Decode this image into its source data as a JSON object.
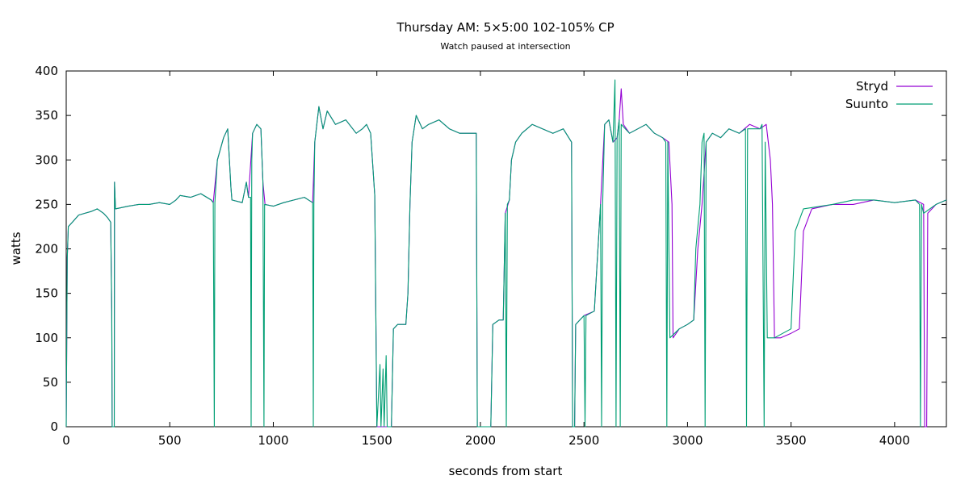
{
  "chart_data": {
    "type": "line",
    "title": "Thursday AM: 5×5:00 102-105% CP",
    "subtitle": "Watch paused at intersection",
    "xlabel": "seconds from start",
    "ylabel": "watts",
    "xlim": [
      0,
      4250
    ],
    "ylim": [
      0,
      400
    ],
    "xticks": [
      0,
      500,
      1000,
      1500,
      2000,
      2500,
      3000,
      3500,
      4000
    ],
    "yticks": [
      0,
      50,
      100,
      150,
      200,
      250,
      300,
      350,
      400
    ],
    "grid": false,
    "legend_position": "top-right",
    "series": [
      {
        "name": "Stryd",
        "color": "#9400d3",
        "points": [
          [
            0,
            0
          ],
          [
            5,
            190
          ],
          [
            10,
            225
          ],
          [
            30,
            230
          ],
          [
            60,
            238
          ],
          [
            90,
            240
          ],
          [
            120,
            242
          ],
          [
            150,
            245
          ],
          [
            180,
            240
          ],
          [
            200,
            235
          ],
          [
            215,
            230
          ],
          [
            220,
            130
          ],
          [
            222,
            0
          ],
          [
            232,
            0
          ],
          [
            233,
            275
          ],
          [
            238,
            245
          ],
          [
            300,
            248
          ],
          [
            350,
            250
          ],
          [
            400,
            250
          ],
          [
            450,
            252
          ],
          [
            500,
            250
          ],
          [
            530,
            255
          ],
          [
            550,
            260
          ],
          [
            600,
            258
          ],
          [
            650,
            262
          ],
          [
            700,
            255
          ],
          [
            710,
            252
          ],
          [
            730,
            300
          ],
          [
            760,
            325
          ],
          [
            780,
            335
          ],
          [
            795,
            270
          ],
          [
            800,
            255
          ],
          [
            850,
            252
          ],
          [
            870,
            275
          ],
          [
            880,
            258
          ],
          [
            900,
            330
          ],
          [
            920,
            340
          ],
          [
            940,
            335
          ],
          [
            950,
            275
          ],
          [
            960,
            250
          ],
          [
            1000,
            248
          ],
          [
            1050,
            252
          ],
          [
            1100,
            255
          ],
          [
            1150,
            258
          ],
          [
            1190,
            252
          ],
          [
            1200,
            320
          ],
          [
            1220,
            360
          ],
          [
            1240,
            335
          ],
          [
            1260,
            355
          ],
          [
            1300,
            340
          ],
          [
            1350,
            345
          ],
          [
            1400,
            330
          ],
          [
            1430,
            335
          ],
          [
            1450,
            340
          ],
          [
            1470,
            330
          ],
          [
            1490,
            260
          ],
          [
            1500,
            0
          ],
          [
            1570,
            0
          ],
          [
            1580,
            110
          ],
          [
            1600,
            115
          ],
          [
            1640,
            115
          ],
          [
            1650,
            150
          ],
          [
            1660,
            250
          ],
          [
            1670,
            320
          ],
          [
            1690,
            350
          ],
          [
            1720,
            335
          ],
          [
            1750,
            340
          ],
          [
            1800,
            345
          ],
          [
            1850,
            335
          ],
          [
            1900,
            330
          ],
          [
            1950,
            330
          ],
          [
            1980,
            330
          ],
          [
            1985,
            0
          ],
          [
            2050,
            0
          ],
          [
            2060,
            115
          ],
          [
            2090,
            120
          ],
          [
            2110,
            120
          ],
          [
            2120,
            240
          ],
          [
            2140,
            255
          ],
          [
            2150,
            300
          ],
          [
            2170,
            320
          ],
          [
            2200,
            330
          ],
          [
            2250,
            340
          ],
          [
            2300,
            335
          ],
          [
            2350,
            330
          ],
          [
            2400,
            335
          ],
          [
            2440,
            320
          ],
          [
            2445,
            0
          ],
          [
            2455,
            0
          ],
          [
            2460,
            115
          ],
          [
            2480,
            120
          ],
          [
            2500,
            125
          ],
          [
            2550,
            130
          ],
          [
            2580,
            250
          ],
          [
            2600,
            340
          ],
          [
            2620,
            345
          ],
          [
            2640,
            320
          ],
          [
            2660,
            325
          ],
          [
            2670,
            345
          ],
          [
            2680,
            380
          ],
          [
            2690,
            340
          ],
          [
            2720,
            330
          ],
          [
            2760,
            335
          ],
          [
            2800,
            340
          ],
          [
            2840,
            330
          ],
          [
            2880,
            325
          ],
          [
            2910,
            320
          ],
          [
            2925,
            250
          ],
          [
            2930,
            100
          ],
          [
            2960,
            110
          ],
          [
            3000,
            115
          ],
          [
            3030,
            120
          ],
          [
            3050,
            200
          ],
          [
            3070,
            250
          ],
          [
            3090,
            320
          ],
          [
            3120,
            330
          ],
          [
            3160,
            325
          ],
          [
            3200,
            335
          ],
          [
            3250,
            330
          ],
          [
            3300,
            340
          ],
          [
            3350,
            335
          ],
          [
            3380,
            340
          ],
          [
            3400,
            300
          ],
          [
            3410,
            250
          ],
          [
            3420,
            100
          ],
          [
            3450,
            100
          ],
          [
            3500,
            105
          ],
          [
            3540,
            110
          ],
          [
            3560,
            220
          ],
          [
            3600,
            245
          ],
          [
            3700,
            250
          ],
          [
            3800,
            250
          ],
          [
            3900,
            255
          ],
          [
            4000,
            252
          ],
          [
            4100,
            255
          ],
          [
            4140,
            250
          ],
          [
            4145,
            0
          ],
          [
            4155,
            0
          ],
          [
            4160,
            240
          ],
          [
            4200,
            250
          ],
          [
            4250,
            255
          ]
        ]
      },
      {
        "name": "Suunto",
        "color": "#009e73",
        "points": [
          [
            0,
            0
          ],
          [
            5,
            190
          ],
          [
            10,
            225
          ],
          [
            30,
            230
          ],
          [
            60,
            238
          ],
          [
            90,
            240
          ],
          [
            120,
            242
          ],
          [
            150,
            245
          ],
          [
            180,
            240
          ],
          [
            200,
            235
          ],
          [
            215,
            230
          ],
          [
            220,
            130
          ],
          [
            222,
            0
          ],
          [
            232,
            0
          ],
          [
            233,
            275
          ],
          [
            238,
            245
          ],
          [
            300,
            248
          ],
          [
            350,
            250
          ],
          [
            400,
            250
          ],
          [
            450,
            252
          ],
          [
            500,
            250
          ],
          [
            530,
            255
          ],
          [
            550,
            260
          ],
          [
            600,
            258
          ],
          [
            650,
            262
          ],
          [
            700,
            255
          ],
          [
            710,
            252
          ],
          [
            715,
            0
          ],
          [
            718,
            252
          ],
          [
            730,
            300
          ],
          [
            760,
            325
          ],
          [
            780,
            335
          ],
          [
            795,
            270
          ],
          [
            800,
            255
          ],
          [
            850,
            252
          ],
          [
            870,
            275
          ],
          [
            880,
            258
          ],
          [
            890,
            258
          ],
          [
            893,
            0
          ],
          [
            896,
            300
          ],
          [
            900,
            330
          ],
          [
            920,
            340
          ],
          [
            940,
            335
          ],
          [
            950,
            275
          ],
          [
            955,
            0
          ],
          [
            958,
            250
          ],
          [
            1000,
            248
          ],
          [
            1050,
            252
          ],
          [
            1100,
            255
          ],
          [
            1150,
            258
          ],
          [
            1190,
            252
          ],
          [
            1193,
            0
          ],
          [
            1196,
            250
          ],
          [
            1200,
            320
          ],
          [
            1220,
            360
          ],
          [
            1240,
            335
          ],
          [
            1260,
            355
          ],
          [
            1300,
            340
          ],
          [
            1350,
            345
          ],
          [
            1400,
            330
          ],
          [
            1430,
            335
          ],
          [
            1450,
            340
          ],
          [
            1470,
            330
          ],
          [
            1490,
            260
          ],
          [
            1500,
            0
          ],
          [
            1515,
            70
          ],
          [
            1520,
            0
          ],
          [
            1530,
            65
          ],
          [
            1535,
            0
          ],
          [
            1545,
            80
          ],
          [
            1550,
            0
          ],
          [
            1570,
            0
          ],
          [
            1580,
            110
          ],
          [
            1600,
            115
          ],
          [
            1640,
            115
          ],
          [
            1650,
            150
          ],
          [
            1660,
            250
          ],
          [
            1670,
            320
          ],
          [
            1690,
            350
          ],
          [
            1720,
            335
          ],
          [
            1750,
            340
          ],
          [
            1800,
            345
          ],
          [
            1850,
            335
          ],
          [
            1900,
            330
          ],
          [
            1950,
            330
          ],
          [
            1980,
            330
          ],
          [
            1985,
            0
          ],
          [
            2050,
            0
          ],
          [
            2060,
            115
          ],
          [
            2090,
            120
          ],
          [
            2110,
            120
          ],
          [
            2120,
            240
          ],
          [
            2125,
            0
          ],
          [
            2130,
            250
          ],
          [
            2140,
            255
          ],
          [
            2150,
            300
          ],
          [
            2170,
            320
          ],
          [
            2200,
            330
          ],
          [
            2250,
            340
          ],
          [
            2300,
            335
          ],
          [
            2350,
            330
          ],
          [
            2400,
            335
          ],
          [
            2440,
            320
          ],
          [
            2445,
            0
          ],
          [
            2455,
            0
          ],
          [
            2460,
            115
          ],
          [
            2480,
            120
          ],
          [
            2500,
            125
          ],
          [
            2505,
            0
          ],
          [
            2510,
            125
          ],
          [
            2550,
            130
          ],
          [
            2580,
            250
          ],
          [
            2585,
            0
          ],
          [
            2590,
            250
          ],
          [
            2600,
            340
          ],
          [
            2620,
            345
          ],
          [
            2640,
            320
          ],
          [
            2650,
            390
          ],
          [
            2655,
            0
          ],
          [
            2660,
            325
          ],
          [
            2670,
            345
          ],
          [
            2675,
            0
          ],
          [
            2680,
            340
          ],
          [
            2720,
            330
          ],
          [
            2760,
            335
          ],
          [
            2800,
            340
          ],
          [
            2840,
            330
          ],
          [
            2880,
            325
          ],
          [
            2895,
            320
          ],
          [
            2900,
            0
          ],
          [
            2905,
            320
          ],
          [
            2915,
            100
          ],
          [
            2960,
            110
          ],
          [
            3000,
            115
          ],
          [
            3030,
            120
          ],
          [
            3040,
            200
          ],
          [
            3060,
            250
          ],
          [
            3070,
            320
          ],
          [
            3080,
            330
          ],
          [
            3085,
            0
          ],
          [
            3090,
            320
          ],
          [
            3120,
            330
          ],
          [
            3160,
            325
          ],
          [
            3200,
            335
          ],
          [
            3250,
            330
          ],
          [
            3280,
            335
          ],
          [
            3285,
            0
          ],
          [
            3290,
            335
          ],
          [
            3350,
            335
          ],
          [
            3360,
            340
          ],
          [
            3370,
            0
          ],
          [
            3375,
            320
          ],
          [
            3385,
            100
          ],
          [
            3420,
            100
          ],
          [
            3460,
            105
          ],
          [
            3500,
            110
          ],
          [
            3520,
            220
          ],
          [
            3560,
            245
          ],
          [
            3700,
            250
          ],
          [
            3800,
            255
          ],
          [
            3900,
            255
          ],
          [
            4000,
            252
          ],
          [
            4100,
            255
          ],
          [
            4120,
            250
          ],
          [
            4125,
            0
          ],
          [
            4130,
            250
          ],
          [
            4140,
            240
          ],
          [
            4200,
            250
          ],
          [
            4250,
            255
          ]
        ]
      }
    ]
  }
}
